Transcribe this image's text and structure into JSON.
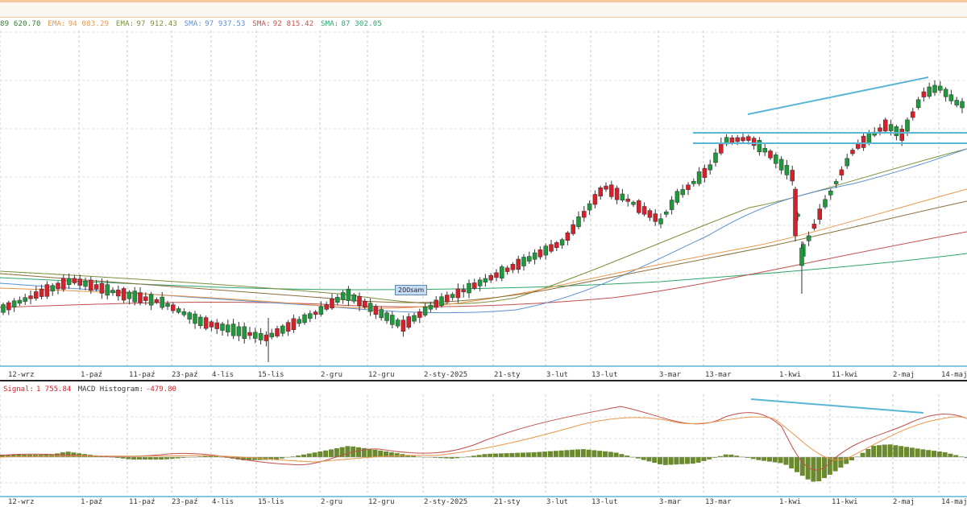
{
  "legend": {
    "price_value": "89 620.70",
    "items": [
      {
        "label": "EMA:",
        "value": "94 083.29",
        "color": "#e9964a"
      },
      {
        "label": "EMA:",
        "value": "97 912.43",
        "color": "#7a8f3a"
      },
      {
        "label": "SMA:",
        "value": "97 937.53",
        "color": "#5b8fd0"
      },
      {
        "label": "SMA:",
        "value": "92 815.42",
        "color": "#c0504d"
      },
      {
        "label": "SMA:",
        "value": "87 302.05",
        "color": "#2ea36b"
      }
    ]
  },
  "date_labels": [
    "12-wrz",
    "1-paź",
    "11-paź",
    "23-paź",
    "4-lis",
    "15-lis",
    "2-gru",
    "12-gru",
    "2-sty-2025",
    "21-sty",
    "3-lut",
    "13-lut",
    "3-mar",
    "13-mar",
    "1-kwi",
    "11-kwi",
    "2-maj",
    "14-maj"
  ],
  "macd_legend": {
    "signal_label": "Signal:",
    "signal_value": "1 755.84",
    "hist_label": "MACD Histogram:",
    "hist_value": "-479.80"
  },
  "tag_200": "200sam",
  "colors": {
    "up": "#1e9a3a",
    "down": "#d6202a",
    "hist": "#6b8a2e",
    "trend": "#5ab6d6",
    "grid": "#c8c8c8"
  }
}
